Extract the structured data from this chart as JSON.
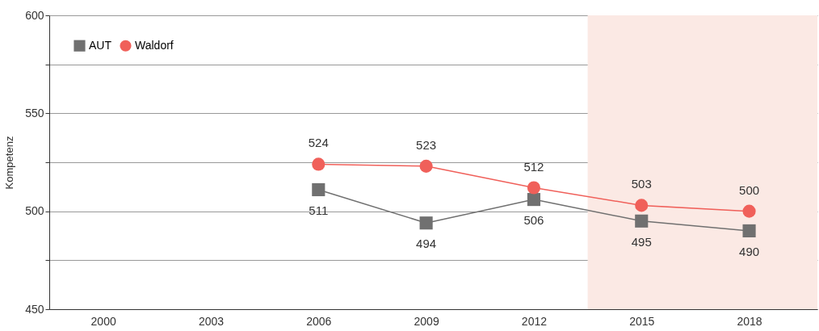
{
  "chart_data": {
    "type": "line",
    "ylabel": "Kompetenz",
    "x": [
      2006,
      2009,
      2012,
      2015,
      2018
    ],
    "series": [
      {
        "name": "AUT",
        "color": "#707070",
        "marker": "square",
        "values": [
          511,
          494,
          506,
          495,
          490
        ]
      },
      {
        "name": "Waldorf",
        "color": "#f0605a",
        "marker": "circle",
        "values": [
          524,
          523,
          512,
          503,
          500
        ]
      }
    ],
    "xlim": [
      1998.5,
      2019.9
    ],
    "xticks": [
      2000,
      2003,
      2006,
      2009,
      2012,
      2015,
      2018
    ],
    "ylim": [
      450,
      600
    ],
    "yticks": [
      450,
      {
        "value": 475,
        "label": null
      },
      500,
      {
        "value": 525,
        "label": null
      },
      550,
      {
        "value": 575,
        "label": null
      },
      600
    ],
    "bands": [
      {
        "axis": "x",
        "from": 2013.5,
        "to": 2019.9,
        "color": "#fbe9e4"
      }
    ],
    "grid": "y",
    "legend": "top left",
    "data_labels": true
  }
}
